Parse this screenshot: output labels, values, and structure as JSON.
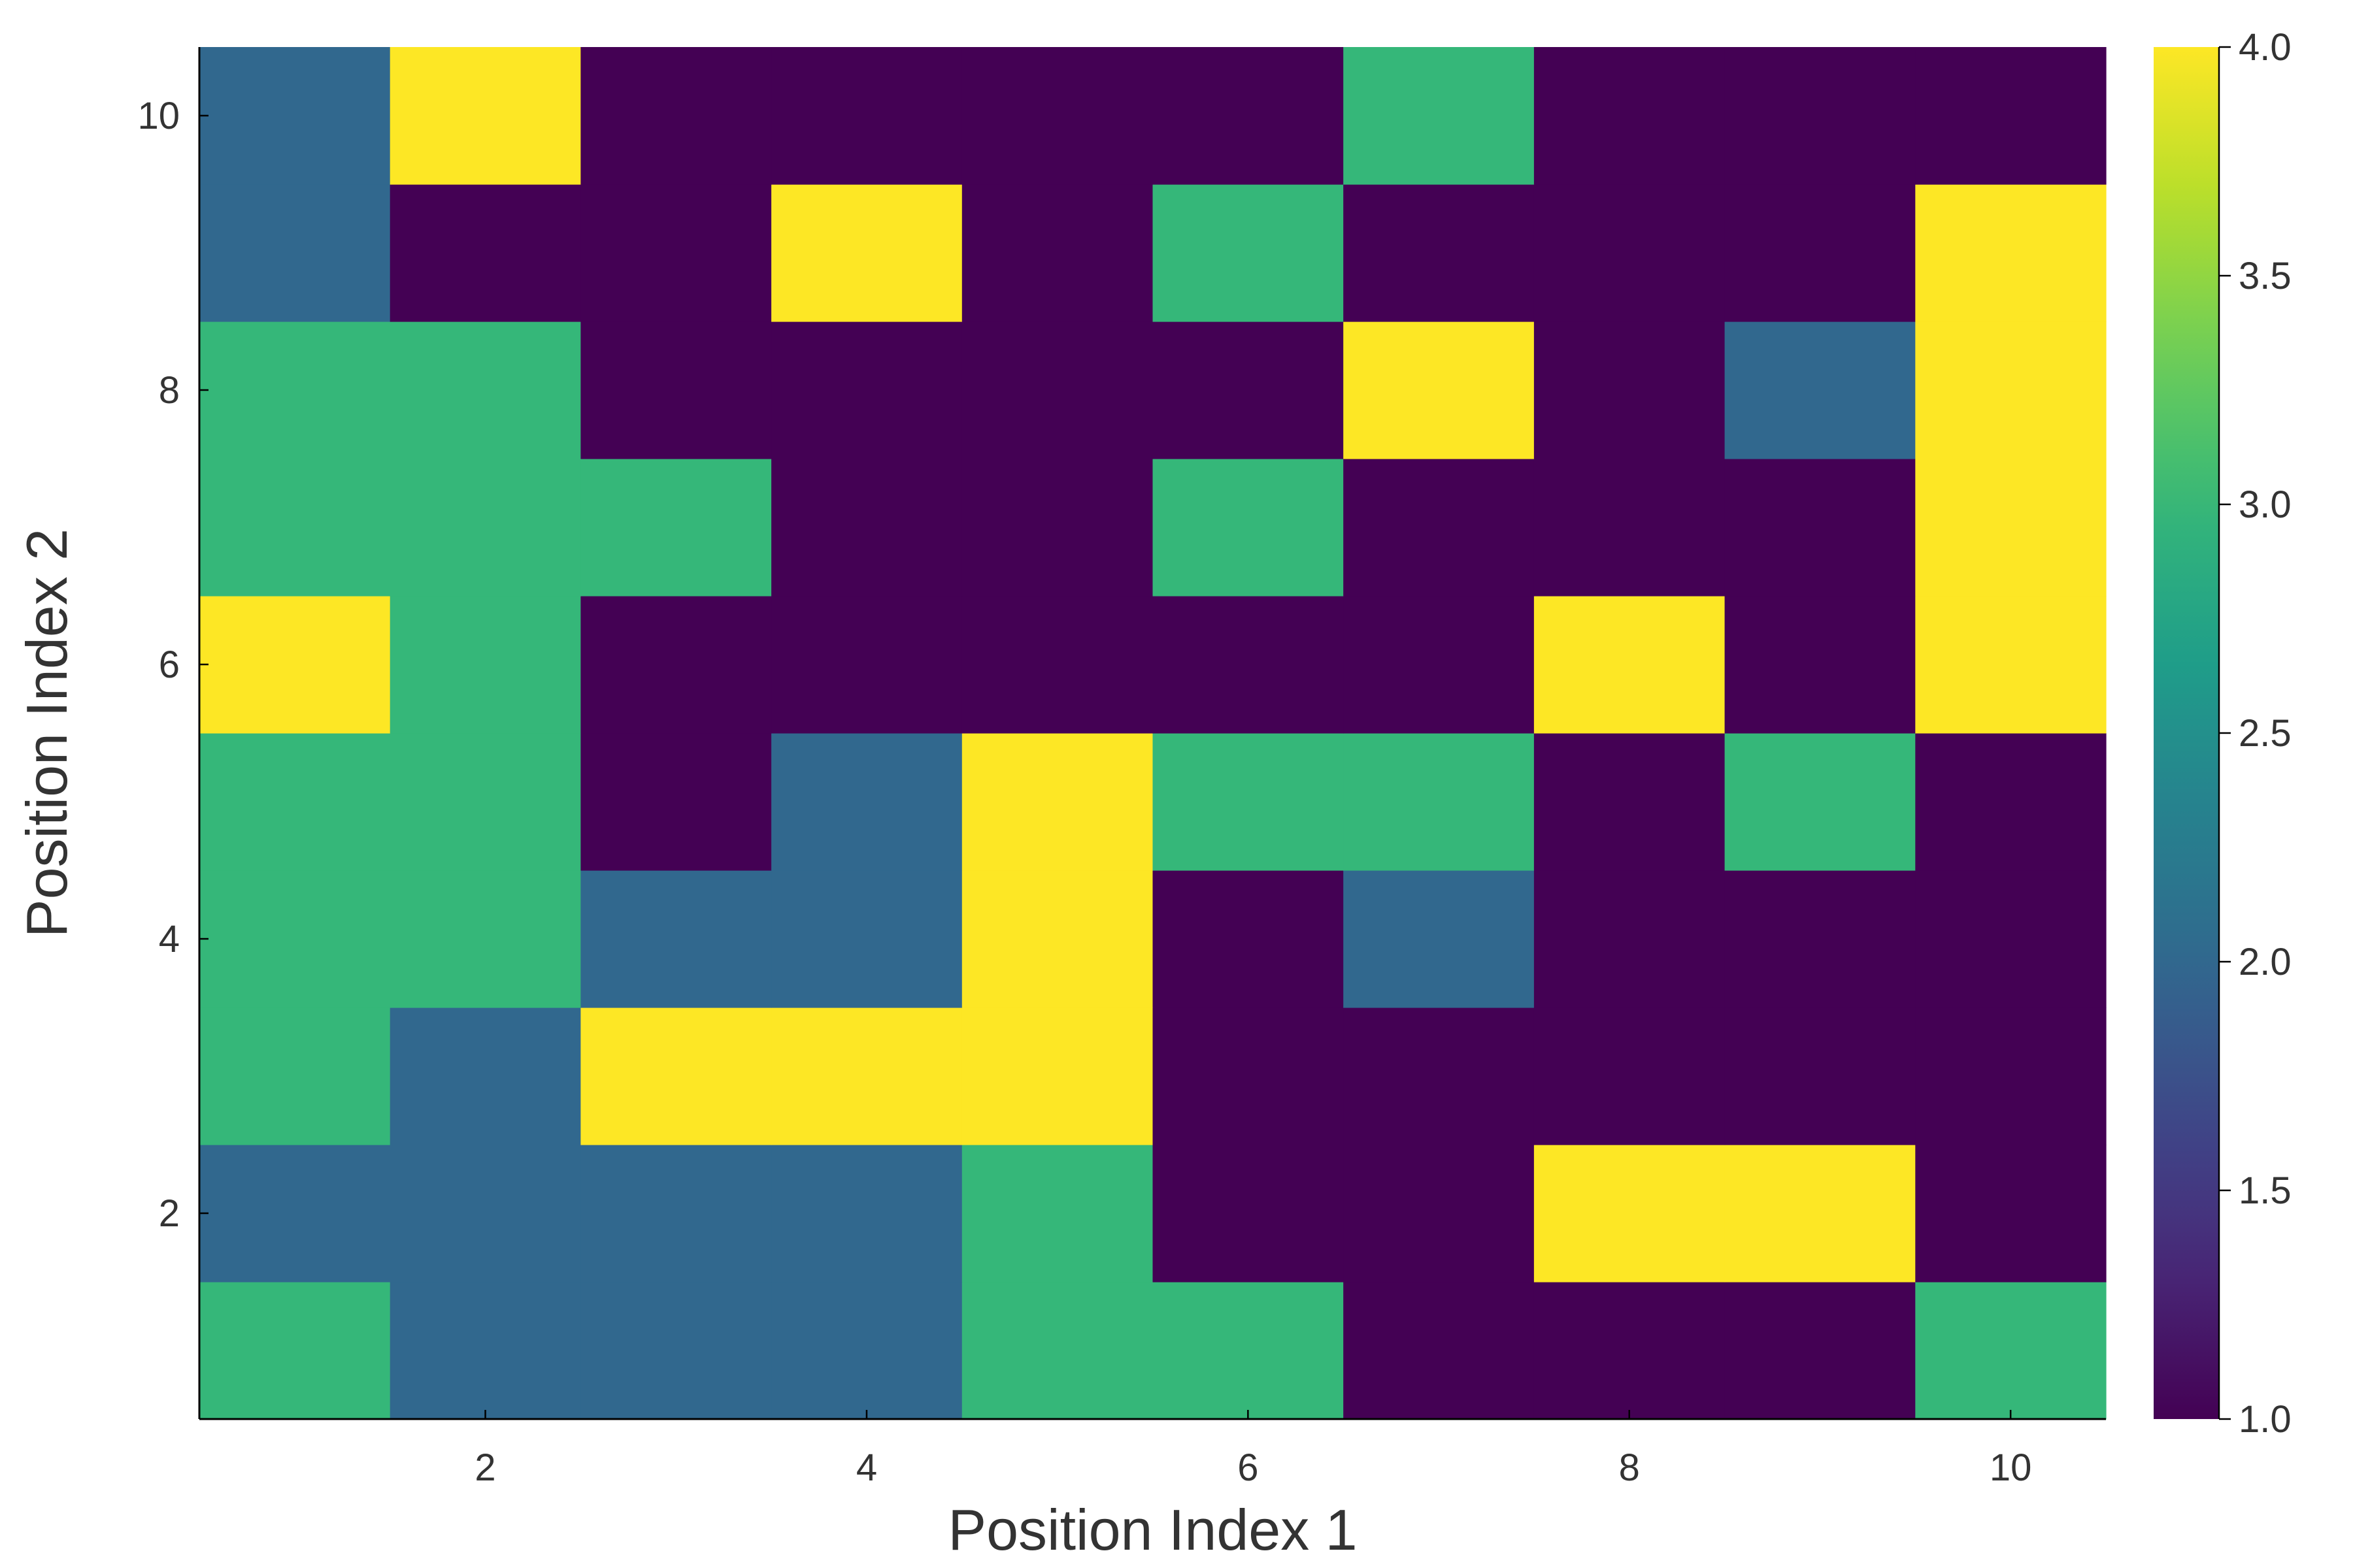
{
  "chart_data": {
    "type": "heatmap",
    "xlabel": "Position Index 1",
    "ylabel": "Position Index 2",
    "x": [
      1,
      2,
      3,
      4,
      5,
      6,
      7,
      8,
      9,
      10
    ],
    "y": [
      1,
      2,
      3,
      4,
      5,
      6,
      7,
      8,
      9,
      10
    ],
    "z": [
      [
        3,
        2,
        2,
        2,
        3,
        3,
        1,
        1,
        1,
        3
      ],
      [
        2,
        2,
        2,
        2,
        3,
        1,
        1,
        4,
        4,
        1
      ],
      [
        3,
        2,
        4,
        4,
        4,
        1,
        1,
        1,
        1,
        1
      ],
      [
        3,
        3,
        2,
        2,
        4,
        1,
        2,
        1,
        1,
        1
      ],
      [
        3,
        3,
        1,
        2,
        4,
        3,
        3,
        1,
        3,
        1
      ],
      [
        4,
        3,
        1,
        1,
        1,
        1,
        1,
        4,
        1,
        4
      ],
      [
        3,
        3,
        3,
        1,
        1,
        3,
        1,
        1,
        1,
        4
      ],
      [
        3,
        3,
        1,
        1,
        1,
        1,
        4,
        1,
        2,
        4
      ],
      [
        2,
        1,
        1,
        4,
        1,
        3,
        1,
        1,
        1,
        4
      ],
      [
        2,
        4,
        1,
        1,
        1,
        1,
        3,
        1,
        1,
        1
      ]
    ],
    "xlim": [
      0.5,
      10.5
    ],
    "ylim": [
      0.5,
      10.5
    ],
    "xticks": [
      2,
      4,
      6,
      8,
      10
    ],
    "yticks": [
      2,
      4,
      6,
      8,
      10
    ],
    "colorbar": {
      "colormap": "viridis",
      "range": [
        1.0,
        4.0
      ],
      "ticks": [
        1.0,
        1.5,
        2.0,
        2.5,
        3.0,
        3.5,
        4.0
      ],
      "tick_labels": [
        "1.0",
        "1.5",
        "2.0",
        "2.5",
        "3.0",
        "3.5",
        "4.0"
      ]
    },
    "grid": false,
    "colors": {
      "viridis": [
        "#440154",
        "#482878",
        "#3e4989",
        "#31688e",
        "#26828e",
        "#1f9e89",
        "#35b779",
        "#6ece58",
        "#b5de2b",
        "#fde725"
      ]
    }
  }
}
